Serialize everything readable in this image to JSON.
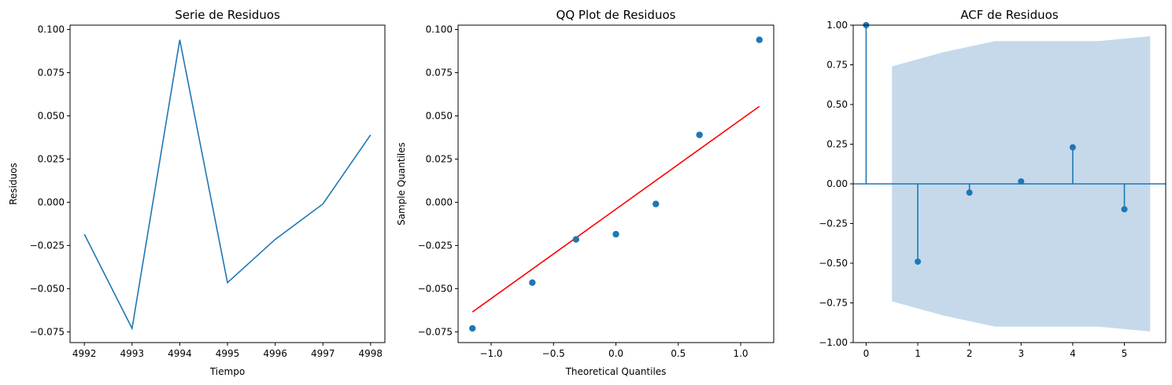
{
  "chart_data": [
    {
      "type": "line",
      "title": "Serie de Residuos",
      "xlabel": "Tiempo",
      "ylabel": "Residuos",
      "x": [
        4992,
        4993,
        4994,
        4995,
        4996,
        4997,
        4998
      ],
      "y": [
        -0.0185,
        -0.073,
        0.094,
        -0.0465,
        -0.0215,
        -0.001,
        0.039
      ],
      "xlim": [
        4991.7,
        4998.3
      ],
      "ylim": [
        -0.0812,
        0.1025
      ],
      "xticks": [
        4992,
        4993,
        4994,
        4995,
        4996,
        4997,
        4998
      ],
      "xtick_labels": [
        "4992",
        "4993",
        "4994",
        "4995",
        "4996",
        "4997",
        "4998"
      ],
      "yticks": [
        -0.075,
        -0.05,
        -0.025,
        0.0,
        0.025,
        0.05,
        0.075,
        0.1
      ],
      "ytick_labels": [
        "−0.075",
        "−0.050",
        "−0.025",
        "0.000",
        "0.025",
        "0.050",
        "0.075",
        "0.100"
      ],
      "line_color": "#1f77b4"
    },
    {
      "type": "scatter",
      "title": "QQ Plot de Residuos",
      "xlabel": "Theoretical Quantiles",
      "ylabel": "Sample Quantiles",
      "x": [
        -1.15,
        -0.67,
        -0.32,
        0.0,
        0.32,
        0.67,
        1.15
      ],
      "y": [
        -0.073,
        -0.0465,
        -0.0215,
        -0.0185,
        -0.001,
        0.039,
        0.094
      ],
      "fit_line": {
        "x": [
          -1.15,
          1.15
        ],
        "y": [
          -0.0635,
          0.0555
        ],
        "color": "#ff0000"
      },
      "xlim": [
        -1.265,
        1.265
      ],
      "ylim": [
        -0.0812,
        0.1025
      ],
      "xticks": [
        -1.0,
        -0.5,
        0.0,
        0.5,
        1.0
      ],
      "xtick_labels": [
        "−1.0",
        "−0.5",
        "0.0",
        "0.5",
        "1.0"
      ],
      "yticks": [
        -0.075,
        -0.05,
        -0.025,
        0.0,
        0.025,
        0.05,
        0.075,
        0.1
      ],
      "ytick_labels": [
        "−0.075",
        "−0.050",
        "−0.025",
        "0.000",
        "0.025",
        "0.050",
        "0.075",
        "0.100"
      ],
      "point_color": "#1f77b4"
    },
    {
      "type": "stem",
      "title": "ACF de Residuos",
      "xlabel": "",
      "ylabel": "",
      "lags": [
        0,
        1,
        2,
        3,
        4,
        5
      ],
      "values": [
        1.0,
        -0.49,
        -0.055,
        0.015,
        0.23,
        -0.16
      ],
      "confidence_band": {
        "x": [
          0.5,
          1.5,
          2.5,
          3.5,
          4.5,
          5.5
        ],
        "upper": [
          0.74,
          0.83,
          0.9,
          0.9,
          0.9,
          0.93
        ],
        "lower": [
          -0.74,
          -0.83,
          -0.9,
          -0.9,
          -0.9,
          -0.93
        ],
        "color": "#c5d9eb"
      },
      "xlim": [
        -0.25,
        5.8
      ],
      "ylim": [
        -1.0,
        1.0
      ],
      "xticks": [
        0,
        1,
        2,
        3,
        4,
        5
      ],
      "xtick_labels": [
        "0",
        "1",
        "2",
        "3",
        "4",
        "5"
      ],
      "yticks": [
        -1.0,
        -0.75,
        -0.5,
        -0.25,
        0.0,
        0.25,
        0.5,
        0.75,
        1.0
      ],
      "ytick_labels": [
        "−1.00",
        "−0.75",
        "−0.50",
        "−0.25",
        "0.00",
        "0.25",
        "0.50",
        "0.75",
        "1.00"
      ],
      "stem_color": "#1f77b4"
    }
  ]
}
